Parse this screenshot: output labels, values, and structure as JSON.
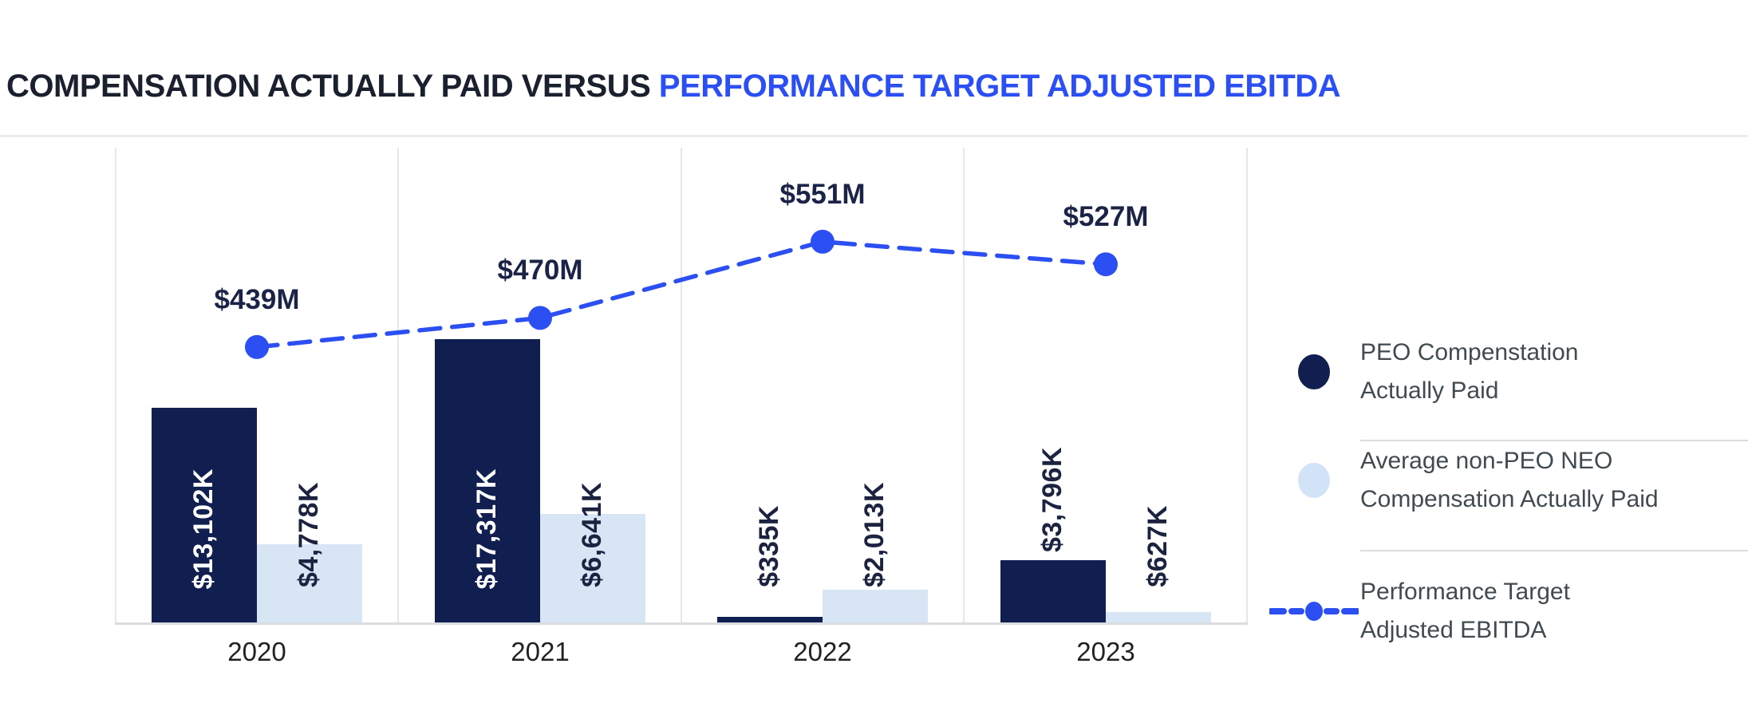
{
  "title": {
    "dark_part": "COMPENSATION ACTUALLY PAID VERSUS",
    "blue_part": "PERFORMANCE TARGET ADJUSTED EBITDA"
  },
  "chart_data": {
    "type": "bar+line",
    "categories": [
      "2020",
      "2021",
      "2022",
      "2023"
    ],
    "series": [
      {
        "name": "PEO Compensation Actually Paid",
        "type": "bar",
        "unit": "thousand USD",
        "values": [
          13102,
          17317,
          335,
          3796
        ],
        "labels": [
          "$13,102K",
          "$17,317K",
          "$335K",
          "$3,796K"
        ],
        "color": "#101f50"
      },
      {
        "name": "Average non-PEO NEO Compensation Actually Paid",
        "type": "bar",
        "unit": "thousand USD",
        "values": [
          4778,
          6641,
          2013,
          627
        ],
        "labels": [
          "$4,778K",
          "$6,641K",
          "$2,013K",
          "$627K"
        ],
        "color": "#d8e5f5"
      },
      {
        "name": "Performance Target Adjusted EBITDA",
        "type": "line",
        "unit": "million USD",
        "values": [
          439,
          470,
          551,
          527
        ],
        "labels": [
          "$439M",
          "$470M",
          "$551M",
          "$527M"
        ],
        "color": "#2b4ff2",
        "line_style": "dashed",
        "marker": "dot"
      }
    ],
    "grid": "vertical panel separators only, no y-axis ticks",
    "legend_position": "right"
  },
  "legend": {
    "items": [
      {
        "line1": "PEO Compenstation",
        "line2": "Actually Paid",
        "swatch": "dark-circle"
      },
      {
        "line1": "Average non-PEO NEO",
        "line2": "Compensation Actually Paid",
        "swatch": "light-circle"
      },
      {
        "line1": "Performance Target",
        "line2": "Adjusted EBITDA",
        "swatch": "dashed-line-dot"
      }
    ]
  },
  "colors": {
    "accent_blue": "#2b4ff2",
    "dark_navy": "#101f50",
    "light_blue": "#d8e5f5",
    "title_dark": "#1b202e",
    "legend_text": "#414a4e"
  }
}
